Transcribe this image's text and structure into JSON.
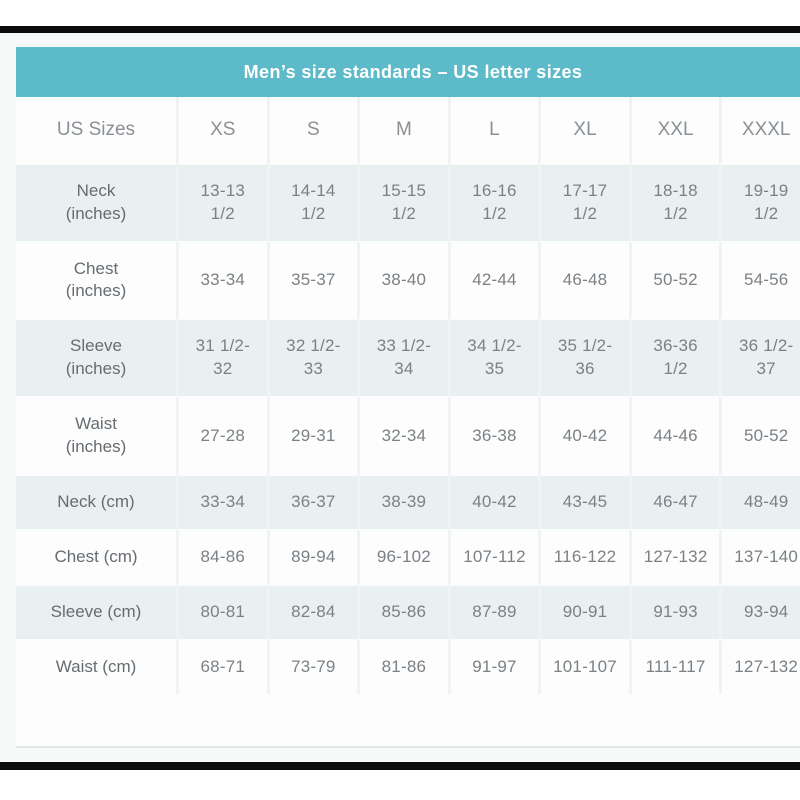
{
  "colors": {
    "title_bar_teal": "#5cbac9",
    "tint_row": "#e9f0f1",
    "black_rule": "#0b0b0b",
    "value_text": "#7b8185"
  },
  "chart_data": {
    "type": "table",
    "title": "Men’s size standards – US letter sizes",
    "columns": [
      "US Sizes",
      "XS",
      "S",
      "M",
      "L",
      "XL",
      "XXL",
      "XXXL"
    ],
    "rows": [
      {
        "label": "Neck\n(inches)",
        "values": [
          "13-13\n1/2",
          "14-14\n1/2",
          "15-15\n1/2",
          "16-16\n1/2",
          "17-17\n1/2",
          "18-18\n1/2",
          "19-19\n1/2"
        ]
      },
      {
        "label": "Chest\n(inches)",
        "values": [
          "33-34",
          "35-37",
          "38-40",
          "42-44",
          "46-48",
          "50-52",
          "54-56"
        ]
      },
      {
        "label": "Sleeve\n(inches)",
        "values": [
          "31 1/2-\n32",
          "32 1/2-\n33",
          "33 1/2-\n34",
          "34 1/2-\n35",
          "35 1/2-\n36",
          "36-36\n1/2",
          "36 1/2-\n37"
        ]
      },
      {
        "label": "Waist\n(inches)",
        "values": [
          "27-28",
          "29-31",
          "32-34",
          "36-38",
          "40-42",
          "44-46",
          "50-52"
        ]
      },
      {
        "label": "Neck (cm)",
        "values": [
          "33-34",
          "36-37",
          "38-39",
          "40-42",
          "43-45",
          "46-47",
          "48-49"
        ]
      },
      {
        "label": "Chest (cm)",
        "values": [
          "84-86",
          "89-94",
          "96-102",
          "107-112",
          "116-122",
          "127-132",
          "137-140"
        ]
      },
      {
        "label": "Sleeve (cm)",
        "values": [
          "80-81",
          "82-84",
          "85-86",
          "87-89",
          "90-91",
          "91-93",
          "93-94"
        ]
      },
      {
        "label": "Waist (cm)",
        "values": [
          "68-71",
          "73-79",
          "81-86",
          "91-97",
          "101-107",
          "111-117",
          "127-132"
        ]
      }
    ]
  }
}
